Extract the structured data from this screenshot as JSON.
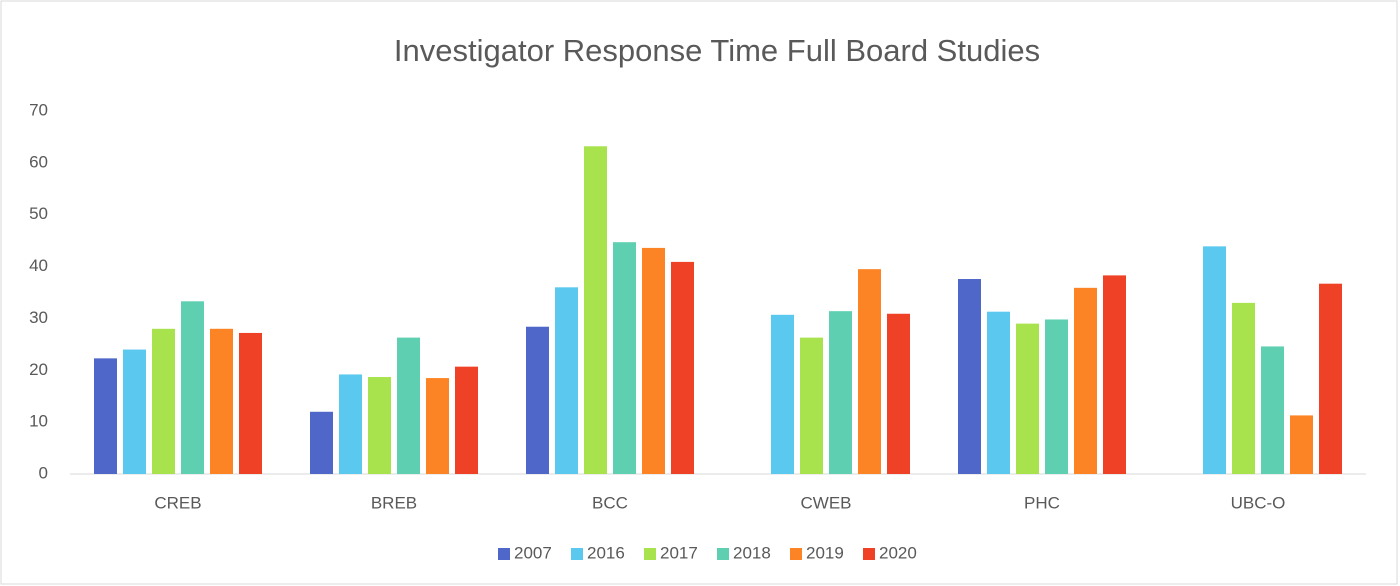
{
  "chart_data": {
    "type": "bar",
    "title": "Investigator Response Time Full Board Studies",
    "categories": [
      "CREB",
      "BREB",
      "BCC",
      "CWEB",
      "PHC",
      "UBC-O"
    ],
    "series": [
      {
        "name": "2007",
        "color": "#4f67c9",
        "values": [
          22.3,
          12,
          28.4,
          null,
          37.6,
          null
        ]
      },
      {
        "name": "2016",
        "color": "#5bc8f0",
        "values": [
          24,
          19.2,
          36,
          30.7,
          31.3,
          43.9
        ]
      },
      {
        "name": "2017",
        "color": "#a8e34d",
        "values": [
          28,
          18.7,
          63.2,
          26.3,
          29,
          33
        ]
      },
      {
        "name": "2018",
        "color": "#5ecfb1",
        "values": [
          33.3,
          26.3,
          44.7,
          31.4,
          29.8,
          24.6
        ]
      },
      {
        "name": "2019",
        "color": "#fd8424",
        "values": [
          28,
          18.5,
          43.6,
          39.5,
          35.9,
          11.3
        ]
      },
      {
        "name": "2020",
        "color": "#ef4126",
        "values": [
          27.2,
          20.7,
          40.9,
          30.9,
          38.3,
          36.7
        ]
      }
    ],
    "ylim": [
      0,
      70
    ],
    "yticks": [
      0,
      10,
      20,
      30,
      40,
      50,
      60,
      70
    ],
    "legend": "bottom"
  }
}
